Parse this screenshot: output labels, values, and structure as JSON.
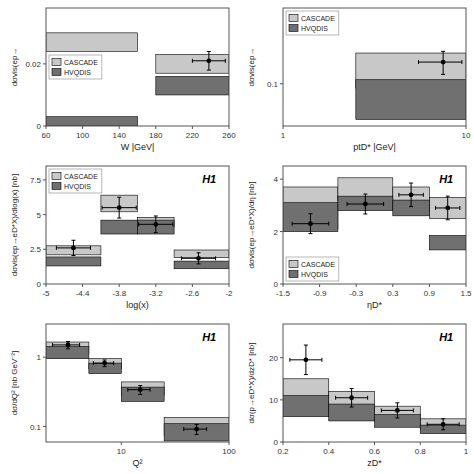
{
  "chart_data": [
    {
      "type": "errorbar",
      "xlabel": "W |GeV|",
      "ylabel": "dσvis(ep→",
      "xlim": [
        60,
        260
      ],
      "ylim": [
        0,
        0.038
      ],
      "xticks": [
        60,
        100,
        140,
        180,
        220,
        260
      ],
      "yticks": [
        0,
        0.02
      ],
      "grid": false,
      "legend": "center left",
      "series": [
        {
          "name": "CASCADE",
          "type": "band",
          "color": "#c8c8c8",
          "x1": [
            60,
            180
          ],
          "x2": [
            160,
            260
          ],
          "y1": [
            0.024,
            0.017
          ],
          "y2": [
            0.03,
            0.023
          ]
        },
        {
          "name": "HVQDIS",
          "type": "band",
          "color": "#707070",
          "x1": [
            60,
            180
          ],
          "x2": [
            160,
            260
          ],
          "y1": [
            0.0,
            0.01
          ],
          "y2": [
            0.003,
            0.016
          ]
        },
        {
          "type": "errorbar",
          "color": "black",
          "x": [
            238
          ],
          "values": [
            0.021
          ],
          "xerr": [
            18
          ],
          "yerr_lo": [
            0.003
          ],
          "yerr_hi": [
            0.003
          ]
        }
      ]
    },
    {
      "type": "errorbar",
      "xlabel": "ptD* |GeV|",
      "ylabel": "dσvis(ep→",
      "xlim": [
        1,
        10
      ],
      "ylim": [
        0.06,
        0.25
      ],
      "xticks": [
        1,
        10
      ],
      "yticks": [
        0.1
      ],
      "log": true,
      "grid": false,
      "legend": "upper left",
      "series": [
        {
          "name": "CASCADE",
          "type": "band",
          "color": "#c8c8c8",
          "x1": [
            2.5
          ],
          "x2": [
            10
          ],
          "y1": [
            0.095
          ],
          "y2": [
            0.145
          ]
        },
        {
          "name": "HVQDIS",
          "type": "band",
          "color": "#707070",
          "x1": [
            2.5
          ],
          "x2": [
            10
          ],
          "y1": [
            0.065
          ],
          "y2": [
            0.105
          ]
        },
        {
          "type": "errorbar",
          "color": "black",
          "x": [
            7.5
          ],
          "values": [
            0.13
          ],
          "xerr": [
            2.0
          ],
          "yerr_lo": [
            0.018
          ],
          "yerr_hi": [
            0.018
          ]
        }
      ]
    },
    {
      "type": "errorbar",
      "xlabel": "log(x)",
      "ylabel": "dσvis(ep→eD*X)/dlog(x) [nb]",
      "xlim": [
        -5,
        -2
      ],
      "ylim": [
        0,
        8.5
      ],
      "xticks": [
        -5,
        -4.4,
        -3.8,
        -3.2,
        -2.6,
        -2
      ],
      "yticks": [
        0,
        2.5,
        5,
        7.5
      ],
      "grid": false,
      "legend": "upper left",
      "annotations": [
        "H1"
      ],
      "series": [
        {
          "name": "CASCADE",
          "type": "band",
          "color": "#c8c8c8",
          "x1": [
            -5.0,
            -4.1,
            -3.5,
            -2.9
          ],
          "x2": [
            -4.1,
            -3.5,
            -2.9,
            -2.0
          ],
          "y1": [
            2.1,
            5.2,
            4.1,
            1.9
          ],
          "y2": [
            2.75,
            6.4,
            4.8,
            2.45
          ]
        },
        {
          "name": "HVQDIS",
          "type": "band",
          "color": "#707070",
          "x1": [
            -5.0,
            -4.1,
            -3.5,
            -2.9
          ],
          "x2": [
            -4.1,
            -3.5,
            -2.9,
            -2.0
          ],
          "y1": [
            1.3,
            3.6,
            3.6,
            1.1
          ],
          "y2": [
            1.95,
            4.6,
            4.6,
            1.65
          ]
        },
        {
          "type": "errorbar",
          "color": "black",
          "x": [
            -4.55,
            -3.8,
            -3.2,
            -2.5
          ],
          "values": [
            2.6,
            5.5,
            4.3,
            1.85
          ],
          "xerr": [
            0.28,
            0.28,
            0.28,
            0.28
          ],
          "yerr_lo": [
            0.55,
            0.75,
            0.6,
            0.4
          ],
          "yerr_hi": [
            0.55,
            0.75,
            0.6,
            0.4
          ]
        }
      ]
    },
    {
      "type": "errorbar",
      "xlabel": "ηD*",
      "ylabel": "dσvis(ep→eD*X)/dη [nb]",
      "xlim": [
        -1.5,
        1.5
      ],
      "ylim": [
        0,
        4.5
      ],
      "xticks": [
        -1.5,
        -0.9,
        -0.3,
        0.3,
        0.9,
        1.5
      ],
      "yticks": [
        0,
        2,
        4
      ],
      "grid": false,
      "legend": "lower left",
      "annotations": [
        "H1"
      ],
      "series": [
        {
          "name": "CASCADE",
          "type": "band",
          "color": "#c8c8c8",
          "x1": [
            -1.5,
            -0.6,
            0.3,
            0.9
          ],
          "x2": [
            -0.6,
            0.3,
            0.9,
            1.5
          ],
          "y1": [
            2.1,
            3.2,
            2.8,
            2.5
          ],
          "y2": [
            3.7,
            4.05,
            3.7,
            3.3
          ]
        },
        {
          "name": "HVQDIS",
          "type": "band",
          "color": "#707070",
          "x1": [
            -1.5,
            -0.6,
            0.3,
            0.9
          ],
          "x2": [
            -0.6,
            0.3,
            0.9,
            1.5
          ],
          "y1": [
            2.0,
            2.8,
            2.6,
            1.3
          ],
          "y2": [
            3.1,
            3.35,
            3.2,
            1.85
          ]
        },
        {
          "type": "errorbar",
          "color": "black",
          "x": [
            -1.05,
            -0.15,
            0.6,
            1.2
          ],
          "values": [
            2.3,
            3.05,
            3.4,
            2.9
          ],
          "xerr": [
            0.3,
            0.3,
            0.2,
            0.2
          ],
          "yerr_lo": [
            0.38,
            0.38,
            0.45,
            0.45
          ],
          "yerr_hi": [
            0.38,
            0.38,
            0.45,
            0.45
          ]
        }
      ]
    },
    {
      "type": "errorbar",
      "xlabel": "Q²",
      "ylabel": "dσ/dQ² [nb GeV⁻²]",
      "xlim": [
        2,
        100
      ],
      "ylim": [
        0.06,
        3.0
      ],
      "xticks": [
        10,
        100
      ],
      "yticks": [
        0.1,
        1
      ],
      "log": true,
      "grid": false,
      "annotations": [
        "H1"
      ],
      "series": [
        {
          "name": "CASCADE",
          "type": "band",
          "color": "#c8c8c8",
          "x1": [
            2,
            5,
            10,
            25
          ],
          "x2": [
            5,
            10,
            25,
            100
          ],
          "y1": [
            1.15,
            0.68,
            0.28,
            0.075
          ],
          "y2": [
            1.65,
            0.95,
            0.44,
            0.135
          ]
        },
        {
          "name": "HVQDIS",
          "type": "band",
          "color": "#707070",
          "x1": [
            2,
            5,
            10,
            25
          ],
          "x2": [
            5,
            10,
            25,
            100
          ],
          "y1": [
            0.95,
            0.58,
            0.23,
            0.062
          ],
          "y2": [
            1.42,
            0.82,
            0.37,
            0.11
          ]
        },
        {
          "type": "errorbar",
          "color": "black",
          "x": [
            3.2,
            7.0,
            15.0,
            50.0
          ],
          "values": [
            1.5,
            0.82,
            0.34,
            0.092
          ],
          "xerr_lo": [
            0.9,
            1.5,
            3.5,
            12.0
          ],
          "xerr_hi": [
            0.9,
            1.5,
            3.5,
            12.0
          ],
          "yerr_lo": [
            0.18,
            0.09,
            0.05,
            0.015
          ],
          "yerr_hi": [
            0.18,
            0.09,
            0.05,
            0.015
          ]
        }
      ]
    },
    {
      "type": "errorbar",
      "xlabel": "zD*",
      "ylabel": "dσ(p→eD*X)/dzD* [nb]",
      "xlim": [
        0.2,
        1.0
      ],
      "ylim": [
        0,
        28
      ],
      "xticks": [
        0.2,
        0.4,
        0.6,
        0.8,
        1
      ],
      "yticks": [
        0,
        10,
        20
      ],
      "grid": false,
      "annotations": [
        "H1"
      ],
      "series": [
        {
          "name": "CASCADE",
          "type": "band",
          "color": "#c8c8c8",
          "x1": [
            0.2,
            0.4,
            0.6,
            0.8
          ],
          "x2": [
            0.4,
            0.6,
            0.8,
            1.0
          ],
          "y1": [
            9,
            7,
            5,
            3
          ],
          "y2": [
            15,
            12,
            8.5,
            5.5
          ]
        },
        {
          "name": "HVQDIS",
          "type": "band",
          "color": "#707070",
          "x1": [
            0.2,
            0.4,
            0.6,
            0.8
          ],
          "x2": [
            0.4,
            0.6,
            0.8,
            1.0
          ],
          "y1": [
            6,
            5,
            3.5,
            2
          ],
          "y2": [
            11,
            9,
            6.5,
            4
          ]
        },
        {
          "type": "errorbar",
          "color": "black",
          "x": [
            0.3,
            0.5,
            0.7,
            0.9
          ],
          "values": [
            19.5,
            10.5,
            7.5,
            4.2
          ],
          "xerr": [
            0.07,
            0.07,
            0.07,
            0.07
          ],
          "yerr_lo": [
            3.5,
            2.2,
            1.8,
            1.3
          ],
          "yerr_hi": [
            3.5,
            2.2,
            1.8,
            1.3
          ]
        }
      ]
    }
  ]
}
